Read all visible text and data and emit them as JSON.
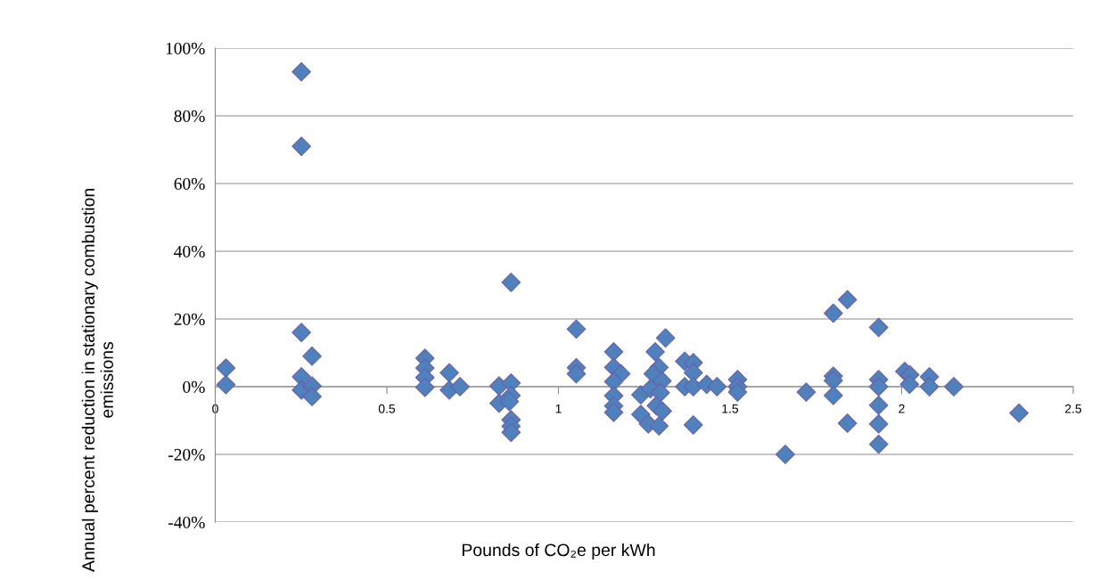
{
  "chart_data": {
    "type": "scatter",
    "xlabel": "Pounds of CO₂e per kWh",
    "ylabel": "Annual percent reduction in stationary combustion emissions",
    "x": [
      0.031,
      0.031,
      0.251,
      0.251,
      0.251,
      0.251,
      0.251,
      0.282,
      0.282,
      0.282,
      0.611,
      0.611,
      0.611,
      0.611,
      0.682,
      0.682,
      0.713,
      0.827,
      0.827,
      0.862,
      0.862,
      0.862,
      0.857,
      0.862,
      0.862,
      0.862,
      1.052,
      1.052,
      1.052,
      1.161,
      1.161,
      1.182,
      1.161,
      1.161,
      1.161,
      1.161,
      1.24,
      1.24,
      1.262,
      1.282,
      1.312,
      1.293,
      1.276,
      1.302,
      1.268,
      1.297,
      1.285,
      1.303,
      1.293,
      1.368,
      1.393,
      1.393,
      1.368,
      1.393,
      1.393,
      1.432,
      1.462,
      1.522,
      1.522,
      1.522,
      1.722,
      1.661,
      1.801,
      1.842,
      1.801,
      1.801,
      1.801,
      1.842,
      1.933,
      1.933,
      1.933,
      1.933,
      1.933,
      1.933,
      2.009,
      2.024,
      2.023,
      2.081,
      2.081,
      2.152,
      2.342
    ],
    "series": [
      {
        "color": "#4f81bd",
        "values": [
          5.5,
          0.6,
          93,
          71,
          16,
          2.9,
          -1,
          9,
          0.2,
          -2.9,
          8.4,
          5.5,
          2.7,
          -0.2,
          4.1,
          -1,
          0,
          0.2,
          -4.9,
          30.8,
          1.1,
          -2.6,
          -4.4,
          -9.8,
          -11.7,
          -13.5,
          17,
          5.6,
          3.8,
          10.3,
          5.7,
          3.8,
          1.5,
          -2.7,
          -5.7,
          -7.6,
          -2.4,
          -8.2,
          -11,
          10.3,
          14.4,
          5.7,
          3.8,
          1.7,
          -0.6,
          -1.8,
          -5.6,
          -7.2,
          -11.6,
          7.5,
          7.1,
          4.1,
          0,
          0,
          -11.3,
          0.7,
          0,
          2.1,
          0,
          -1.6,
          -1.6,
          -20,
          21.7,
          25.7,
          3.1,
          1.8,
          -2.6,
          -10.8,
          17.5,
          2.1,
          0,
          -5.5,
          -11,
          -17,
          4.5,
          3.5,
          0.7,
          2.9,
          0,
          0,
          -7.8
        ]
      }
    ],
    "marker": "diamond",
    "grid": "y",
    "xlim": [
      0,
      2.5
    ],
    "xticks": [
      0,
      0.5,
      1,
      1.5,
      2,
      2.5
    ],
    "ylim": [
      -40,
      100
    ],
    "yticks": [
      {
        "value": -40,
        "label": "-40%"
      },
      {
        "value": -20,
        "label": "-20%"
      },
      {
        "value": 0,
        "label": "0%"
      },
      {
        "value": 20,
        "label": "20%"
      },
      {
        "value": 40,
        "label": "40%"
      },
      {
        "value": 60,
        "label": "60%"
      },
      {
        "value": 80,
        "label": "80%"
      },
      {
        "value": 100,
        "label": "100%"
      }
    ]
  }
}
